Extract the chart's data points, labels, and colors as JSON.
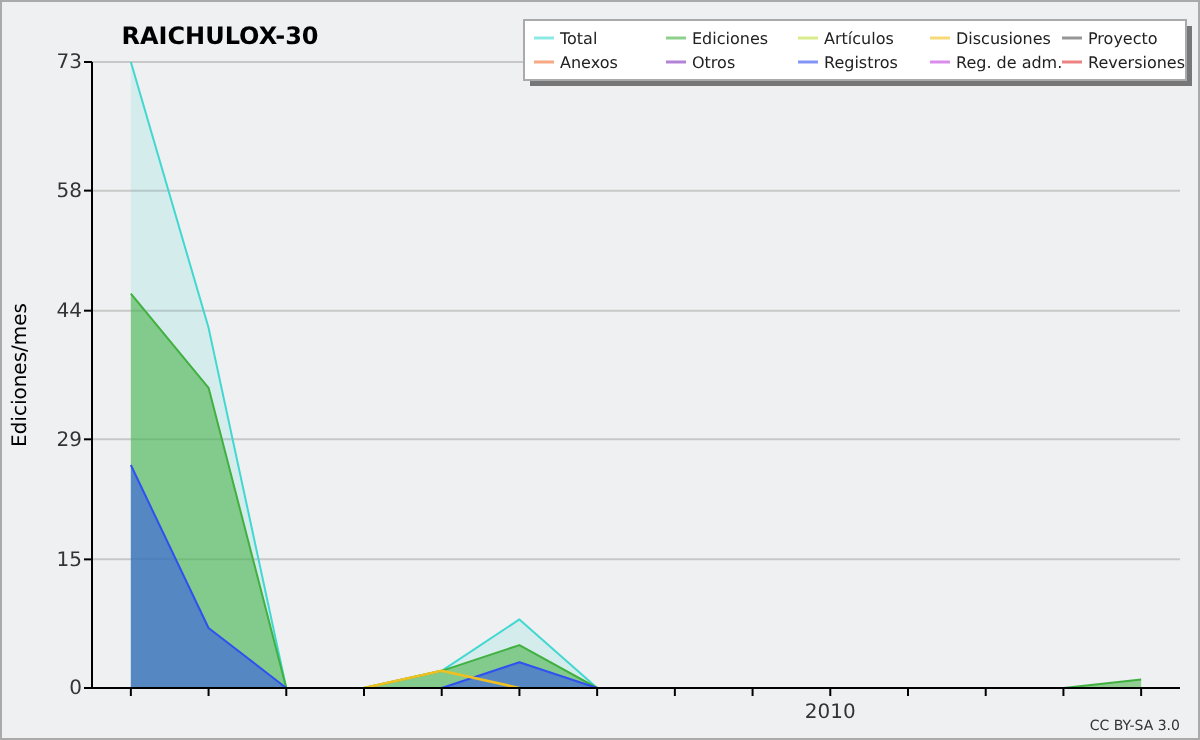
{
  "chart_data": {
    "type": "line",
    "title": "RAICHULOX-30",
    "ylabel": "Ediciones/mes",
    "categories": [
      null,
      null,
      null,
      null,
      null,
      null,
      null,
      null,
      null,
      "2010",
      null,
      null,
      null,
      null
    ],
    "ylim": [
      0,
      73
    ],
    "yticks": [
      0,
      15,
      29,
      44,
      58,
      73
    ],
    "grid": "y",
    "legend": "top right",
    "series": [
      {
        "name": "Total",
        "type": "area",
        "color": "#40d8d0",
        "values": [
          73,
          42,
          0,
          0,
          2,
          8,
          0,
          null,
          null,
          null,
          null,
          null,
          null,
          null
        ]
      },
      {
        "name": "Ediciones",
        "type": "area",
        "color": "#40b040",
        "values": [
          46,
          35,
          0,
          0,
          2,
          5,
          0,
          null,
          null,
          null,
          null,
          null,
          0,
          1
        ]
      },
      {
        "name": "Artículos",
        "color": "#c0e040",
        "values": [
          null,
          null,
          null,
          null,
          null,
          null,
          null,
          null,
          null,
          null,
          null,
          null,
          null,
          null
        ]
      },
      {
        "name": "Discusiones",
        "color": "#f0c020",
        "values": [
          null,
          null,
          null,
          0,
          2,
          0,
          null,
          null,
          null,
          null,
          null,
          null,
          null,
          null
        ]
      },
      {
        "name": "Proyecto",
        "color": "#505050",
        "values": [
          null,
          null,
          null,
          null,
          null,
          null,
          null,
          null,
          null,
          null,
          null,
          null,
          null,
          null
        ]
      },
      {
        "name": "Anexos",
        "color": "#f07030",
        "values": [
          null,
          null,
          null,
          null,
          null,
          null,
          null,
          null,
          null,
          null,
          null,
          null,
          null,
          null
        ]
      },
      {
        "name": "Otros",
        "color": "#8030c0",
        "values": [
          null,
          null,
          null,
          null,
          null,
          null,
          null,
          null,
          null,
          null,
          null,
          null,
          null,
          null
        ]
      },
      {
        "name": "Registros",
        "type": "area",
        "color": "#3050f0",
        "values": [
          26,
          7,
          0,
          null,
          0,
          3,
          0,
          null,
          null,
          null,
          null,
          null,
          null,
          null
        ]
      },
      {
        "name": "Reg. de adm.",
        "color": "#c040e0",
        "values": [
          null,
          null,
          null,
          null,
          null,
          null,
          null,
          null,
          null,
          null,
          null,
          null,
          null,
          null
        ]
      },
      {
        "name": "Reversiones",
        "color": "#e03030",
        "values": [
          null,
          null,
          null,
          null,
          null,
          null,
          null,
          null,
          null,
          null,
          null,
          null,
          null,
          null
        ]
      }
    ],
    "annotations": [
      "CC BY-SA 3.0"
    ]
  }
}
